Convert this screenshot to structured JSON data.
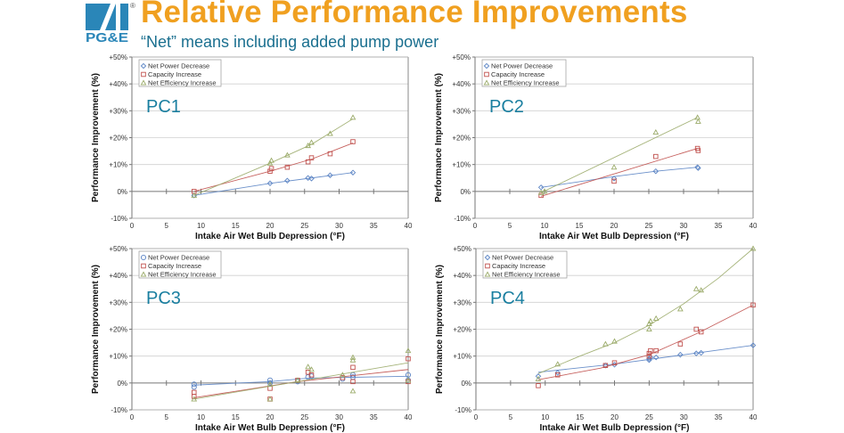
{
  "header": {
    "logo_text": "PG&E",
    "registered_mark": "®",
    "title": "Relative Performance Improvements",
    "subtitle": "“Net” means including added pump power"
  },
  "colors": {
    "title": "#f0a020",
    "subtitle": "#1a6f8f",
    "panel_label": "#1a7fa0",
    "net_power_decrease": "#5b84c4",
    "capacity_increase": "#c0504d",
    "net_efficiency_increase": "#9bab6a"
  },
  "chart_data": [
    {
      "type": "scatter",
      "panel": "PC1",
      "xlabel": "Intake Air Wet Bulb Depression (°F)",
      "ylabel": "Performance Improvement (%)",
      "xlim": [
        0,
        40
      ],
      "ylim": [
        -10,
        50
      ],
      "xticks": [
        "0",
        "5",
        "10",
        "15",
        "20",
        "25",
        "30",
        "35",
        "40"
      ],
      "yticks": [
        "-10%",
        "0%",
        "+10%",
        "+20%",
        "+30%",
        "+40%",
        "+50%"
      ],
      "grid": true,
      "legend": "top-left",
      "series": [
        {
          "name": "Net Power Decrease",
          "marker": "diamond",
          "color": "#5b84c4",
          "points": [
            [
              9,
              -1.5
            ],
            [
              20,
              3
            ],
            [
              22.5,
              4
            ],
            [
              25.5,
              5
            ],
            [
              26,
              4.8
            ],
            [
              28.7,
              6
            ],
            [
              32,
              7
            ]
          ],
          "trend": [
            [
              9,
              -1.5
            ],
            [
              20,
              3
            ],
            [
              26,
              5
            ],
            [
              32,
              7
            ]
          ]
        },
        {
          "name": "Capacity Increase",
          "marker": "square",
          "color": "#c0504d",
          "points": [
            [
              9,
              0
            ],
            [
              20,
              7.5
            ],
            [
              20.2,
              8.5
            ],
            [
              22.5,
              9
            ],
            [
              25.5,
              11
            ],
            [
              26,
              12.5
            ],
            [
              28.7,
              14
            ],
            [
              32,
              18.5
            ]
          ],
          "trend": [
            [
              9,
              0
            ],
            [
              20,
              7.5
            ],
            [
              26,
              12
            ],
            [
              32,
              18
            ]
          ]
        },
        {
          "name": "Net Efficiency Increase",
          "marker": "triangle",
          "color": "#9bab6a",
          "points": [
            [
              9,
              -1.5
            ],
            [
              20,
              10.5
            ],
            [
              20.2,
              11.5
            ],
            [
              22.5,
              13.5
            ],
            [
              25.5,
              17
            ],
            [
              26,
              18.2
            ],
            [
              28.7,
              21.5
            ],
            [
              32,
              27.5
            ]
          ],
          "trend": [
            [
              9,
              -1.5
            ],
            [
              20,
              10.5
            ],
            [
              26,
              17.5
            ],
            [
              32,
              27
            ]
          ]
        }
      ]
    },
    {
      "type": "scatter",
      "panel": "PC2",
      "xlabel": "Intake Air Wet Bulb Depression (°F)",
      "ylabel": "Performance Improvement (%)",
      "xlim": [
        0,
        40
      ],
      "ylim": [
        -10,
        50
      ],
      "xticks": [
        "0",
        "5",
        "10",
        "15",
        "20",
        "25",
        "30",
        "35",
        "40"
      ],
      "yticks": [
        "-10%",
        "0%",
        "+10%",
        "+20%",
        "+30%",
        "+40%",
        "+50%"
      ],
      "grid": true,
      "legend": "top-left",
      "series": [
        {
          "name": "Net Power Decrease",
          "marker": "diamond",
          "color": "#5b84c4",
          "points": [
            [
              9.5,
              1.5
            ],
            [
              20,
              4.8
            ],
            [
              26,
              7.5
            ],
            [
              32,
              9
            ],
            [
              32.1,
              8.7
            ]
          ],
          "trend": [
            [
              9.5,
              1.5
            ],
            [
              20,
              5.5
            ],
            [
              26,
              7.5
            ],
            [
              32,
              9
            ]
          ]
        },
        {
          "name": "Capacity Increase",
          "marker": "square",
          "color": "#c0504d",
          "points": [
            [
              9.5,
              -1.5
            ],
            [
              20,
              3.8
            ],
            [
              26,
              13
            ],
            [
              32,
              16
            ],
            [
              32.1,
              15.2
            ]
          ],
          "trend": [
            [
              9.5,
              -1.8
            ],
            [
              32,
              16
            ]
          ]
        },
        {
          "name": "Net Efficiency Increase",
          "marker": "triangle",
          "color": "#9bab6a",
          "points": [
            [
              9.5,
              -0.5
            ],
            [
              10,
              0
            ],
            [
              20,
              9
            ],
            [
              26,
              22
            ],
            [
              32,
              27.5
            ],
            [
              32.1,
              26
            ]
          ],
          "trend": [
            [
              9.5,
              -0.5
            ],
            [
              32,
              27.5
            ]
          ]
        }
      ]
    },
    {
      "type": "scatter",
      "panel": "PC3",
      "xlabel": "Intake Air Wet Bulb Depression (°F)",
      "ylabel": "Performance Improvement (%)",
      "xlim": [
        0,
        40
      ],
      "ylim": [
        -10,
        50
      ],
      "xticks": [
        "0",
        "5",
        "10",
        "15",
        "20",
        "25",
        "30",
        "35",
        "40"
      ],
      "yticks": [
        "-10%",
        "0%",
        "+10%",
        "+20%",
        "+30%",
        "+40%",
        "+50%"
      ],
      "grid": true,
      "legend": "top-left",
      "series": [
        {
          "name": "Net Power Decrease",
          "marker": "circle",
          "color": "#5b84c4",
          "points": [
            [
              9,
              -0.5
            ],
            [
              9,
              -1.5
            ],
            [
              20,
              1
            ],
            [
              20,
              0
            ],
            [
              24,
              0.5
            ],
            [
              25.5,
              2.2
            ],
            [
              26,
              2.5
            ],
            [
              30.5,
              1.5
            ],
            [
              32,
              3
            ],
            [
              32,
              2.2
            ],
            [
              40,
              3
            ],
            [
              40,
              1
            ]
          ],
          "trend": [
            [
              9,
              -0.8
            ],
            [
              20,
              0.5
            ],
            [
              25.5,
              1.8
            ],
            [
              40,
              2.5
            ]
          ]
        },
        {
          "name": "Capacity Increase",
          "marker": "square",
          "color": "#c0504d",
          "points": [
            [
              9,
              -3.5
            ],
            [
              9,
              -5
            ],
            [
              20,
              -2
            ],
            [
              20,
              -6
            ],
            [
              24,
              1
            ],
            [
              25.5,
              4
            ],
            [
              26,
              3
            ],
            [
              30.5,
              2
            ],
            [
              32,
              5.8
            ],
            [
              32,
              0.5
            ],
            [
              40,
              9
            ],
            [
              40,
              0.5
            ]
          ],
          "trend": [
            [
              9,
              -5.5
            ],
            [
              24,
              0.5
            ],
            [
              40,
              5
            ]
          ]
        },
        {
          "name": "Net Efficiency Increase",
          "marker": "triangle",
          "color": "#9bab6a",
          "points": [
            [
              9,
              -6
            ],
            [
              20,
              -0.5
            ],
            [
              20,
              -6
            ],
            [
              24,
              1
            ],
            [
              25.5,
              6
            ],
            [
              26,
              5
            ],
            [
              30.5,
              3
            ],
            [
              32,
              9.5
            ],
            [
              32,
              8.5
            ],
            [
              32,
              -3
            ],
            [
              40,
              12
            ],
            [
              40,
              1
            ]
          ],
          "trend": [
            [
              9,
              -6
            ],
            [
              24,
              0.5
            ],
            [
              40,
              7.5
            ]
          ]
        }
      ]
    },
    {
      "type": "scatter",
      "panel": "PC4",
      "xlabel": "Intake Air Wet Bulb Depression (°F)",
      "ylabel": "Performance Improvement (%)",
      "xlim": [
        0,
        40
      ],
      "ylim": [
        -10,
        50
      ],
      "xticks": [
        "0",
        "5",
        "10",
        "15",
        "20",
        "25",
        "30",
        "35",
        "40"
      ],
      "yticks": [
        "-10%",
        "0%",
        "+10%",
        "+20%",
        "+30%",
        "+40%",
        "+50%"
      ],
      "grid": true,
      "legend": "top-left",
      "series": [
        {
          "name": "Net Power Decrease",
          "marker": "diamond",
          "color": "#5b84c4",
          "points": [
            [
              9,
              2.5
            ],
            [
              11.8,
              3.8
            ],
            [
              18.7,
              6.5
            ],
            [
              20,
              6.8
            ],
            [
              25,
              8.5
            ],
            [
              25,
              9
            ],
            [
              25.2,
              9.5
            ],
            [
              26,
              9.5
            ],
            [
              29.5,
              10.5
            ],
            [
              31.8,
              11
            ],
            [
              32.5,
              11.2
            ],
            [
              40,
              14
            ]
          ],
          "trend": [
            [
              9,
              4
            ],
            [
              20,
              7
            ],
            [
              30,
              10.5
            ],
            [
              40,
              14
            ]
          ]
        },
        {
          "name": "Capacity Increase",
          "marker": "square",
          "color": "#c0504d",
          "points": [
            [
              9,
              -1
            ],
            [
              11.8,
              3
            ],
            [
              18.7,
              6.5
            ],
            [
              20,
              7.5
            ],
            [
              25,
              10
            ],
            [
              25,
              11
            ],
            [
              25.2,
              12
            ],
            [
              26,
              12
            ],
            [
              29.5,
              14.5
            ],
            [
              31.8,
              20
            ],
            [
              32.5,
              19
            ],
            [
              40,
              29
            ]
          ],
          "trend": [
            [
              9,
              1.2
            ],
            [
              18,
              5.5
            ],
            [
              25,
              10.5
            ],
            [
              32,
              18.5
            ],
            [
              40,
              29
            ]
          ]
        },
        {
          "name": "Net Efficiency Increase",
          "marker": "triangle",
          "color": "#9bab6a",
          "points": [
            [
              9,
              1.5
            ],
            [
              11.8,
              7
            ],
            [
              18.7,
              14.5
            ],
            [
              20,
              15.5
            ],
            [
              25,
              20
            ],
            [
              25,
              22
            ],
            [
              25.2,
              23
            ],
            [
              26,
              24
            ],
            [
              29.5,
              27.5
            ],
            [
              31.8,
              35
            ],
            [
              32.5,
              34.5
            ],
            [
              40,
              50
            ]
          ],
          "trend": [
            [
              9,
              3.5
            ],
            [
              15,
              10
            ],
            [
              20,
              15
            ],
            [
              25,
              21.5
            ],
            [
              30,
              29.5
            ],
            [
              35,
              39
            ],
            [
              40,
              50
            ]
          ]
        }
      ]
    }
  ],
  "panels_layout_names": [
    "PC1",
    "PC2",
    "PC3",
    "PC4"
  ]
}
